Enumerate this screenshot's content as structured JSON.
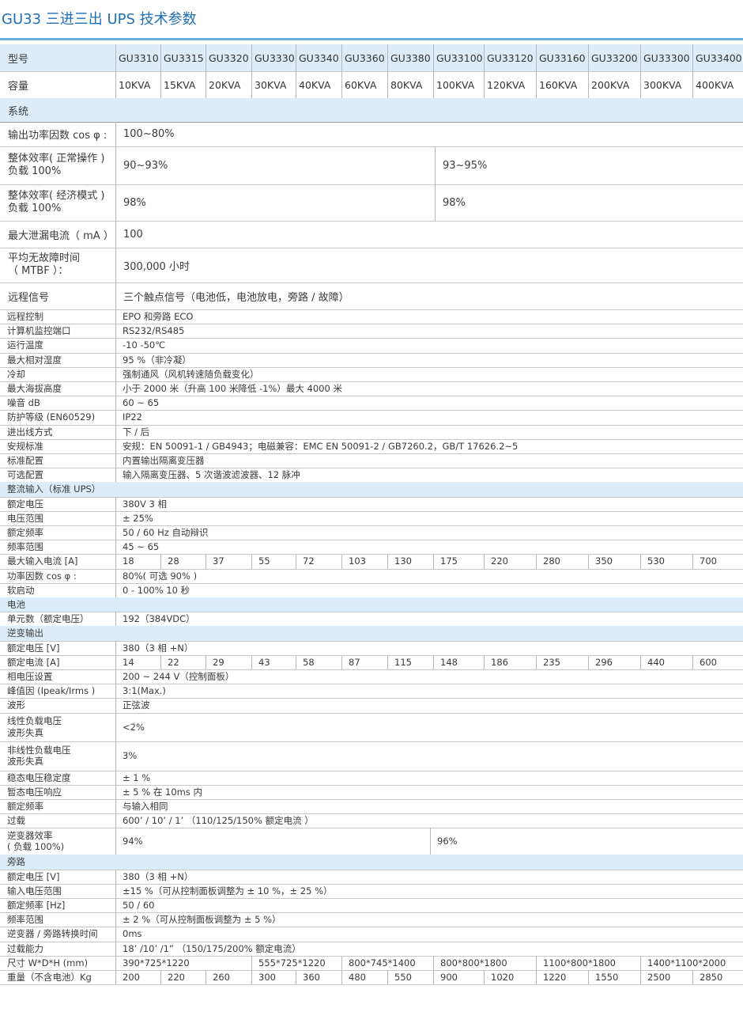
{
  "title": "GU33 三进三出 UPS 技术参数",
  "models": [
    "GU3310",
    "GU3315",
    "GU3320",
    "GU3330",
    "GU3340",
    "GU3360",
    "GU3380",
    "GU33100",
    "GU33120",
    "GU33160",
    "GU33200",
    "GU33300",
    "GU33400"
  ],
  "capacities": [
    "10KVA",
    "15KVA",
    "20KVA",
    "30KVA",
    "40KVA",
    "60KVA",
    "80KVA",
    "100KVA",
    "120KVA",
    "160KVA",
    "200KVA",
    "300KVA",
    "400KVA"
  ],
  "labels": {
    "model": "型号",
    "capacity": "容量",
    "system": "系统",
    "pf": "输出功率因数 cos φ :",
    "eff_normal": "整体效率( 正常操作 )\n负载 100%",
    "eff_eco": "整体效率( 经济模式 )\n负载 100%",
    "leak": "最大泄漏电流（ mA ）",
    "mtbf": "平均无故障时间\n（ MTBF ）：",
    "remote_sig": "远程信号"
  },
  "system_values": {
    "pf": "100~80%",
    "eff_normal_a": "90~93%",
    "eff_normal_b": "93~95%",
    "eff_eco_a": "98%",
    "eff_eco_b": "98%",
    "leak": "100",
    "mtbf": "300,000 小时",
    "remote_sig": "三个触点信号（电池低，电池放电，旁路 / 故障）"
  },
  "rows": [
    {
      "type": "kv",
      "label": "远程控制",
      "value": "EPO 和旁路 ECO"
    },
    {
      "type": "kv",
      "label": "计算机监控端口",
      "value": "RS232/RS485"
    },
    {
      "type": "kv",
      "label": "运行温度",
      "value": "-10 -50℃"
    },
    {
      "type": "kv",
      "label": "最大相对湿度",
      "value": "95 %（非冷凝）"
    },
    {
      "type": "kv",
      "label": "冷却",
      "value": "强制通风（风机转速随负载变化）"
    },
    {
      "type": "kv",
      "label": "最大海拔高度",
      "value": "小于 2000 米（升高 100 米降低 -1%）最大 4000 米"
    },
    {
      "type": "kv",
      "label": "噪音 dB",
      "value": "60 ~ 65"
    },
    {
      "type": "kv",
      "label": "防护等级 (EN60529)",
      "value": "IP22"
    },
    {
      "type": "kv",
      "label": "进出线方式",
      "value": "下 / 后"
    },
    {
      "type": "kv",
      "label": "安规标准",
      "value": "安规：EN 50091-1 / GB4943；电磁兼容：EMC EN 50091-2 / GB7260.2，GB/T 17626.2~5"
    },
    {
      "type": "kv",
      "label": "标准配置",
      "value": "内置输出隔离变压器"
    },
    {
      "type": "kv",
      "label": "可选配置",
      "value": "输入隔离变压器、5 次谐波滤波器、12 脉冲"
    },
    {
      "type": "section",
      "label": "整流输入（标准 UPS）"
    },
    {
      "type": "kv",
      "label": "额定电压",
      "value": "380V 3 相"
    },
    {
      "type": "kv",
      "label": "电压范围",
      "value": "± 25%"
    },
    {
      "type": "kv",
      "label": "额定频率",
      "value": "50 / 60 Hz  自动辩识"
    },
    {
      "type": "kv",
      "label": "频率范围",
      "value": "45 ~ 65"
    },
    {
      "type": "multi",
      "label": "最大输入电流 [A]",
      "values": [
        "18",
        "28",
        "37",
        "55",
        "72",
        "103",
        "130",
        "175",
        "220",
        "280",
        "350",
        "530",
        "700"
      ]
    },
    {
      "type": "kv",
      "label": "功率因数 cos φ :",
      "value": "80%( 可选 90% )"
    },
    {
      "type": "kv",
      "label": "软启动",
      "value": "0 - 100% 10 秒"
    },
    {
      "type": "section",
      "label": "电池"
    },
    {
      "type": "kv",
      "label": "单元数（额定电压）",
      "value": "192（384VDC）"
    },
    {
      "type": "section",
      "label": "逆变输出"
    },
    {
      "type": "kv",
      "label": "额定电压      [V]",
      "value": "380（3 相 +N）"
    },
    {
      "type": "multi",
      "label": "额定电流      [A]",
      "values": [
        "14",
        "22",
        "29",
        "43",
        "58",
        "87",
        "115",
        "148",
        "186",
        "235",
        "296",
        "440",
        "600"
      ]
    },
    {
      "type": "kv",
      "label": "相电压设置",
      "value": "  200 ~ 244 V（控制面板）"
    },
    {
      "type": "kv",
      "label": "峰值因 (Ipeak/Irms )",
      "value": "3:1(Max.)"
    },
    {
      "type": "kv",
      "label": "波形",
      "value": "正弦波"
    },
    {
      "type": "kv2",
      "label": "线性负载电压\n波形失真",
      "value": "<2%"
    },
    {
      "type": "kv2",
      "label": "非线性负载电压\n波形失真",
      "value": "3%"
    },
    {
      "type": "kv",
      "label": "稳态电压稳定度",
      "value": "± 1 %"
    },
    {
      "type": "kv",
      "label": "暂态电压响应",
      "value": "± 5 % 在 10ms 内"
    },
    {
      "type": "kv",
      "label": "额定频率",
      "value": "与输入相同"
    },
    {
      "type": "kv",
      "label": "过载",
      "value": "  600’ / 10’ / 1’  （110/125/150% 额定电流 ）"
    },
    {
      "type": "split2",
      "label": "逆变器效率\n( 负载 100%)",
      "values": [
        "94%",
        "96%"
      ]
    },
    {
      "type": "section",
      "label": "旁路"
    },
    {
      "type": "kv",
      "label": "额定电压      [V]",
      "value": "380（3 相 +N）"
    },
    {
      "type": "kv",
      "label": "输入电压范围",
      "value": "±15 %（可从控制面板调整为 ± 10 %，± 25 %）"
    },
    {
      "type": "kv",
      "label": "额定频率      [Hz]",
      "value": "50 / 60"
    },
    {
      "type": "kv",
      "label": "频率范围",
      "value": "± 2 %（可从控制面板调整为 ± 5 %）"
    },
    {
      "type": "kv",
      "label": "逆变器 / 旁路转换时间",
      "value": "0ms"
    },
    {
      "type": "kv",
      "label": "过载能力",
      "value": "18’ /10’ /1”  （150/175/200% 额定电流）"
    },
    {
      "type": "dims",
      "label": "尺寸 W*D*H (mm)",
      "values": [
        "390*725*1220",
        "555*725*1220",
        "800*745*1400",
        "800*800*1800",
        "1100*800*1800",
        "1400*1100*2000"
      ]
    },
    {
      "type": "multi",
      "label": "重量（不含电池）Kg",
      "values": [
        "200",
        "220",
        "260",
        "300",
        "360",
        "480",
        "550",
        "900",
        "1020",
        "1220",
        "1550",
        "2500",
        "2850"
      ]
    }
  ]
}
